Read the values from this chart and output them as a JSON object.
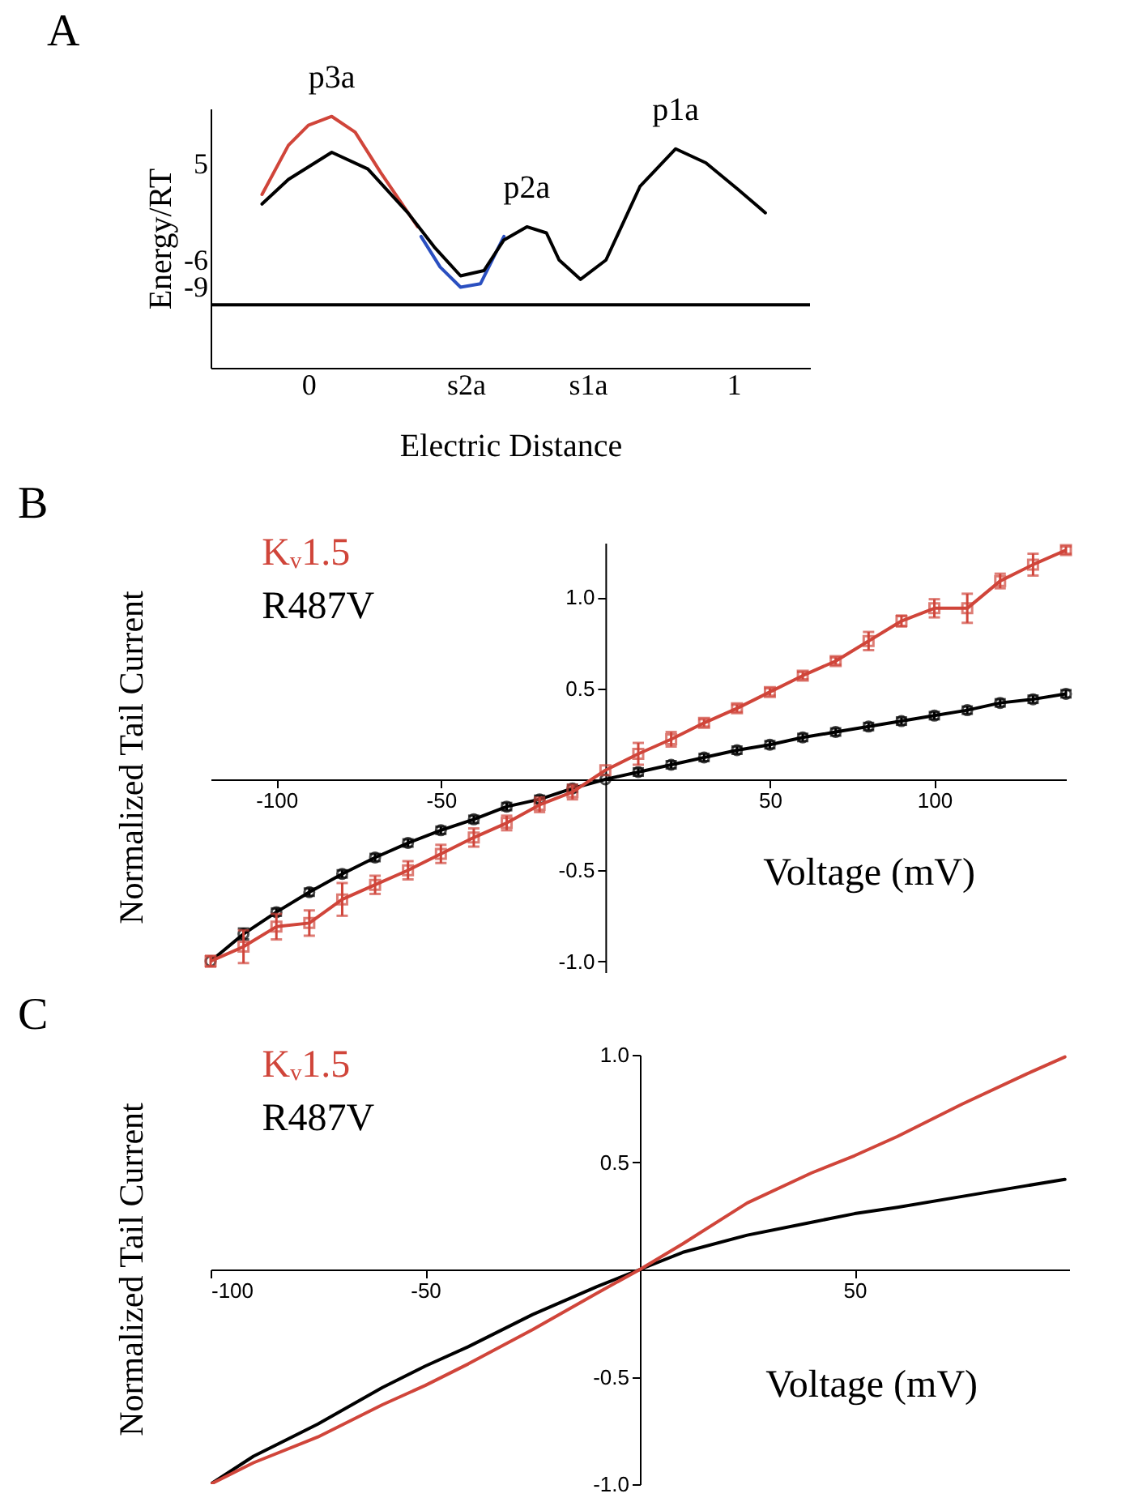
{
  "chart_data": [
    {
      "type": "line",
      "title": "A",
      "xlabel": "Electric Distance",
      "ylabel": "Energy/RT",
      "xlim": [
        -0.23,
        1.18
      ],
      "ylim": [
        -18.2,
        11.4
      ],
      "xticks": [
        0,
        {
          "value": 0.37,
          "label": "s2a"
        },
        {
          "value": 0.657,
          "label": "s1a"
        },
        1
      ],
      "yticks": [
        5,
        -6,
        -9
      ],
      "marker": "none",
      "series": [
        {
          "color": "#000000",
          "x": [
            -0.109,
            -0.047,
            0.055,
            0.14,
            0.234,
            0.296,
            0.358,
            0.413,
            0.46,
            0.514,
            0.56,
            0.59,
            0.64,
            0.7,
            0.78,
            0.864,
            0.935,
            1.01,
            1.075
          ],
          "values": [
            0.5,
            3.3,
            6.4,
            4.5,
            -0.5,
            -4.4,
            -7.7,
            -7.1,
            -3.6,
            -2.1,
            -2.8,
            -5.9,
            -8.1,
            -5.9,
            2.5,
            6.8,
            5.2,
            2.2,
            -0.5
          ]
        },
        {
          "color": "#d0453a",
          "x": [
            -0.109,
            -0.047,
            0.0,
            0.055,
            0.11,
            0.17,
            0.257
          ],
          "values": [
            1.6,
            7.2,
            9.5,
            10.5,
            8.7,
            4.1,
            -2.1
          ]
        },
        {
          "color": "#2a4fc0",
          "x": [
            0.265,
            0.31,
            0.358,
            0.405,
            0.46
          ],
          "values": [
            -3.2,
            -6.7,
            -9.0,
            -8.6,
            -3.2
          ]
        }
      ],
      "ref_lines": [
        {
          "axis": "y",
          "value": -11
        }
      ],
      "annotations": [
        {
          "text": "p3a",
          "x": 0.055,
          "y": 10.5
        },
        {
          "text": "p2a",
          "x": 0.514,
          "y": -2.1
        },
        {
          "text": "p1a",
          "x": 0.864,
          "y": 6.8
        }
      ]
    },
    {
      "type": "line",
      "title": "B",
      "xlabel": "Voltage (mV)",
      "ylabel": "Normalized Tail Current",
      "xlim": [
        -120,
        140
      ],
      "ylim": [
        -1.06,
        1.3
      ],
      "xticks": [
        -100,
        -50,
        50,
        100
      ],
      "yticks": [
        {
          "value": 1,
          "label": "1.0"
        },
        {
          "value": 0.5,
          "label": "0.5"
        },
        {
          "value": -0.5,
          "label": "-0.5"
        },
        {
          "value": -1,
          "label": "-1.0"
        }
      ],
      "legend": "top left",
      "x": [
        -120,
        -110,
        -100,
        -90,
        -80,
        -70,
        -60,
        -50,
        -40,
        -30,
        -20,
        -10,
        0,
        10,
        20,
        30,
        40,
        50,
        60,
        70,
        80,
        90,
        100,
        110,
        120,
        130,
        140
      ],
      "series": [
        {
          "name": "Kᵥ1.5",
          "color": "#d0453a",
          "marker": "square",
          "values": [
            -1.0,
            -0.92,
            -0.81,
            -0.79,
            -0.66,
            -0.58,
            -0.5,
            -0.41,
            -0.32,
            -0.24,
            -0.14,
            -0.07,
            0.05,
            0.14,
            0.22,
            0.31,
            0.39,
            0.48,
            0.57,
            0.65,
            0.76,
            0.87,
            0.94,
            0.94,
            1.09,
            1.18,
            1.26
          ],
          "errors": [
            0.03,
            0.09,
            0.07,
            0.07,
            0.09,
            0.05,
            0.05,
            0.05,
            0.05,
            0.04,
            0.04,
            0.04,
            null,
            0.06,
            0.04,
            0.02,
            0.02,
            0.02,
            0.02,
            0.02,
            0.05,
            0.03,
            0.05,
            0.08,
            0.04,
            0.06,
            0.02
          ]
        },
        {
          "name": "R487V",
          "color": "#000000",
          "marker": "circle",
          "values": [
            -1.0,
            -0.85,
            -0.73,
            -0.62,
            -0.52,
            -0.43,
            -0.35,
            -0.28,
            -0.22,
            -0.15,
            -0.11,
            -0.05,
            0.0,
            0.04,
            0.08,
            0.12,
            0.16,
            0.19,
            0.23,
            0.26,
            0.29,
            0.32,
            0.35,
            0.38,
            0.42,
            0.44,
            0.47
          ],
          "errors": [
            null,
            0.03,
            0.02,
            0.02,
            0.02,
            0.02,
            0.02,
            0.02,
            0.02,
            0.02,
            0.02,
            0.02,
            null,
            0.02,
            0.02,
            0.02,
            0.02,
            0.02,
            0.02,
            0.02,
            0.02,
            0.02,
            0.02,
            0.02,
            0.02,
            0.02,
            0.02
          ]
        }
      ]
    },
    {
      "type": "line",
      "title": "C",
      "xlabel": "Voltage (mV)",
      "ylabel": "Normalized Tail Current",
      "xlim": [
        -100,
        100
      ],
      "ylim": [
        -1.0,
        1.0
      ],
      "xticks": [
        -100,
        -50,
        50
      ],
      "yticks": [
        {
          "value": 1,
          "label": "1.0"
        },
        {
          "value": 0.5,
          "label": "0.5"
        },
        {
          "value": -0.5,
          "label": "-0.5"
        },
        {
          "value": -1,
          "label": "-1.0"
        }
      ],
      "legend": "top left",
      "marker": "none",
      "x": [
        -100,
        -90,
        -75,
        -60,
        -50,
        -40,
        -25,
        -10,
        0,
        10,
        25,
        40,
        50,
        60,
        75,
        90,
        99
      ],
      "series": [
        {
          "name": "Kᵥ1.5",
          "color": "#d0453a",
          "values": [
            -1.0,
            -0.9,
            -0.78,
            -0.63,
            -0.54,
            -0.44,
            -0.28,
            -0.11,
            0.0,
            0.12,
            0.31,
            0.45,
            0.53,
            0.62,
            0.77,
            0.91,
            0.99
          ]
        },
        {
          "name": "R487V",
          "color": "#000000",
          "values": [
            -1.0,
            -0.87,
            -0.72,
            -0.55,
            -0.45,
            -0.36,
            -0.21,
            -0.08,
            0.0,
            0.08,
            0.16,
            0.22,
            0.26,
            0.29,
            0.34,
            0.39,
            0.42
          ]
        }
      ]
    }
  ]
}
